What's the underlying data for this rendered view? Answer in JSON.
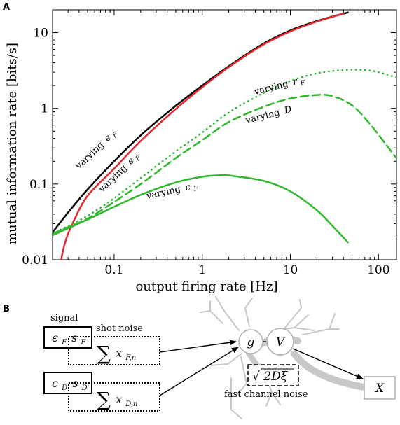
{
  "panel_a": {
    "letter": "A"
  },
  "panel_b": {
    "letter": "B"
  },
  "chart_data": {
    "type": "line",
    "xscale": "log",
    "yscale": "log",
    "xlabel": "output firing rate [Hz]",
    "ylabel": "mutual information rate [bits/s]",
    "xlim": [
      0.02,
      160
    ],
    "ylim": [
      0.01,
      20
    ],
    "xticks": [
      {
        "value": 0.1,
        "label": "0.1"
      },
      {
        "value": 1,
        "label": "1"
      },
      {
        "value": 10,
        "label": "10"
      },
      {
        "value": 100,
        "label": "100"
      }
    ],
    "yticks": [
      {
        "value": 0.01,
        "label": "0.01"
      },
      {
        "value": 0.1,
        "label": "0.1"
      },
      {
        "value": 1,
        "label": "1"
      },
      {
        "value": 10,
        "label": "10"
      }
    ],
    "series": [
      {
        "color": "#000000",
        "dash": "solid",
        "points": [
          [
            0.02,
            0.023
          ],
          [
            0.03,
            0.042
          ],
          [
            0.05,
            0.085
          ],
          [
            0.1,
            0.2
          ],
          [
            0.2,
            0.44
          ],
          [
            0.5,
            1.08
          ],
          [
            1,
            2.0
          ],
          [
            2,
            3.6
          ],
          [
            5,
            7.2
          ],
          [
            10,
            10.7
          ],
          [
            20,
            14.2
          ],
          [
            45,
            18.5
          ]
        ]
      },
      {
        "color": "#e8262b",
        "dash": "solid",
        "points": [
          [
            0.025,
            0.01
          ],
          [
            0.027,
            0.015
          ],
          [
            0.03,
            0.022
          ],
          [
            0.035,
            0.033
          ],
          [
            0.05,
            0.07
          ],
          [
            0.1,
            0.16
          ],
          [
            0.2,
            0.37
          ],
          [
            0.5,
            0.98
          ],
          [
            1,
            1.9
          ],
          [
            2,
            3.5
          ],
          [
            5,
            7.0
          ],
          [
            10,
            10.4
          ],
          [
            20,
            14.0
          ],
          [
            40,
            17.8
          ]
        ]
      },
      {
        "color": "#2eb82e",
        "dash": "dotted",
        "points": [
          [
            0.02,
            0.022
          ],
          [
            0.03,
            0.028
          ],
          [
            0.05,
            0.038
          ],
          [
            0.1,
            0.065
          ],
          [
            0.2,
            0.12
          ],
          [
            0.5,
            0.27
          ],
          [
            1,
            0.48
          ],
          [
            2,
            0.88
          ],
          [
            5,
            1.6
          ],
          [
            10,
            2.3
          ],
          [
            20,
            2.9
          ],
          [
            40,
            3.2
          ],
          [
            70,
            3.2
          ],
          [
            100,
            3.0
          ],
          [
            160,
            2.55
          ]
        ]
      },
      {
        "color": "#2eb82e",
        "dash": "dashed",
        "points": [
          [
            0.02,
            0.022
          ],
          [
            0.03,
            0.027
          ],
          [
            0.05,
            0.035
          ],
          [
            0.1,
            0.058
          ],
          [
            0.2,
            0.1
          ],
          [
            0.5,
            0.22
          ],
          [
            1,
            0.38
          ],
          [
            2,
            0.66
          ],
          [
            5,
            1.05
          ],
          [
            10,
            1.35
          ],
          [
            20,
            1.5
          ],
          [
            30,
            1.45
          ],
          [
            50,
            1.1
          ],
          [
            80,
            0.62
          ],
          [
            120,
            0.34
          ],
          [
            160,
            0.22
          ]
        ]
      },
      {
        "color": "#2eb82e",
        "dash": "solid",
        "points": [
          [
            0.02,
            0.021
          ],
          [
            0.03,
            0.026
          ],
          [
            0.05,
            0.034
          ],
          [
            0.1,
            0.05
          ],
          [
            0.2,
            0.072
          ],
          [
            0.5,
            0.105
          ],
          [
            1,
            0.125
          ],
          [
            1.5,
            0.13
          ],
          [
            2,
            0.13
          ],
          [
            5,
            0.11
          ],
          [
            10,
            0.08
          ],
          [
            20,
            0.045
          ],
          [
            30,
            0.028
          ],
          [
            45,
            0.017
          ]
        ]
      }
    ],
    "annotations": [
      {
        "text": "varying",
        "sym": "ϵ",
        "sub": "F"
      },
      {
        "text": "varying",
        "sym": "ϵ",
        "sub": "F"
      },
      {
        "text": "varying",
        "sym": "ϵ",
        "sub": "F"
      },
      {
        "text": "varying",
        "sym": "r",
        "sub": "F"
      },
      {
        "text": "varying",
        "sym": "D",
        "sub": ""
      }
    ]
  },
  "diagram": {
    "signal_label": "signal",
    "signal_box": {
      "sym": "ϵ",
      "sub1": "F",
      "mid": "s",
      "sub2": "F"
    },
    "shot_noise_label": "shot noise",
    "shot_sum": {
      "sigma": "∑",
      "x": "x",
      "sub": "F,n"
    },
    "d_box": {
      "sym": "ϵ",
      "sub1": "D",
      "mid": "s",
      "sub2": "D"
    },
    "d_sum": {
      "sigma": "∑",
      "x": "x",
      "sub": "D,n"
    },
    "g_node": "g",
    "v_node": "V",
    "x_node": "X",
    "noise_box": {
      "root": "√",
      "expr": "2Dξ"
    },
    "fast_noise_label": "fast channel noise"
  }
}
